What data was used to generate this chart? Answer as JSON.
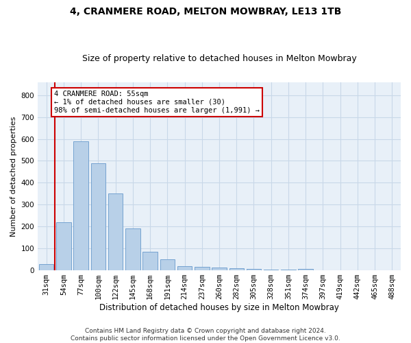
{
  "title": "4, CRANMERE ROAD, MELTON MOWBRAY, LE13 1TB",
  "subtitle": "Size of property relative to detached houses in Melton Mowbray",
  "xlabel": "Distribution of detached houses by size in Melton Mowbray",
  "ylabel": "Number of detached properties",
  "categories": [
    "31sqm",
    "54sqm",
    "77sqm",
    "100sqm",
    "122sqm",
    "145sqm",
    "168sqm",
    "191sqm",
    "214sqm",
    "237sqm",
    "260sqm",
    "282sqm",
    "305sqm",
    "328sqm",
    "351sqm",
    "374sqm",
    "397sqm",
    "419sqm",
    "442sqm",
    "465sqm",
    "488sqm"
  ],
  "values": [
    30,
    220,
    590,
    490,
    350,
    190,
    85,
    50,
    18,
    15,
    13,
    10,
    5,
    4,
    3,
    8,
    0,
    0,
    0,
    0,
    0
  ],
  "bar_color": "#b8d0e8",
  "bar_edge_color": "#6699cc",
  "highlight_color": "#cc0000",
  "annotation_line1": "4 CRANMERE ROAD: 55sqm",
  "annotation_line2": "← 1% of detached houses are smaller (30)",
  "annotation_line3": "98% of semi-detached houses are larger (1,991) →",
  "annotation_box_color": "#ffffff",
  "annotation_box_edge_color": "#cc0000",
  "ylim": [
    0,
    860
  ],
  "yticks": [
    0,
    100,
    200,
    300,
    400,
    500,
    600,
    700,
    800
  ],
  "grid_color": "#c8d8e8",
  "bg_color": "#e8f0f8",
  "footer_line1": "Contains HM Land Registry data © Crown copyright and database right 2024.",
  "footer_line2": "Contains public sector information licensed under the Open Government Licence v3.0.",
  "title_fontsize": 10,
  "subtitle_fontsize": 9,
  "xlabel_fontsize": 8.5,
  "ylabel_fontsize": 8,
  "tick_fontsize": 7.5,
  "annotation_fontsize": 7.5,
  "footer_fontsize": 6.5,
  "red_line_x": 0.5
}
